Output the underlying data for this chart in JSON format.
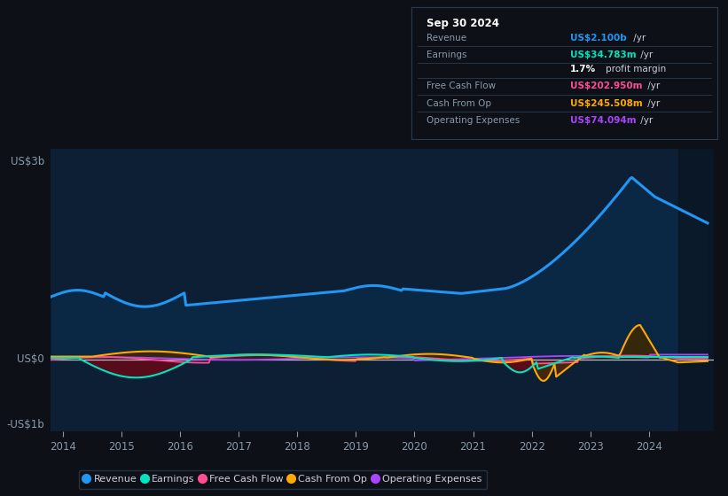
{
  "bg_color": "#0d1117",
  "plot_bg_color": "#0d1f35",
  "grid_color": "#263d5a",
  "ylabel_3b": "US$3b",
  "ylabel_0": "US$0",
  "ylabel_neg1b": "-US$1b",
  "x_ticks": [
    2014,
    2015,
    2016,
    2017,
    2018,
    2019,
    2020,
    2021,
    2022,
    2023,
    2024
  ],
  "ylim_low": -1100000000.0,
  "ylim_high": 3200000000.0,
  "revenue_color": "#2196f3",
  "earnings_color": "#00e5c0",
  "fcf_color": "#ff4d94",
  "cashop_color": "#ffaa00",
  "opex_color": "#aa44ff",
  "revenue_fill": "#0a2a4a",
  "earnings_fill_neg": "#5c0a1a",
  "cashop_fill_neg": "#5c2a00",
  "cashop_fill_pos": "#3a2800",
  "legend_items": [
    {
      "label": "Revenue",
      "color": "#2196f3"
    },
    {
      "label": "Earnings",
      "color": "#00e5c0"
    },
    {
      "label": "Free Cash Flow",
      "color": "#ff4d94"
    },
    {
      "label": "Cash From Op",
      "color": "#ffaa00"
    },
    {
      "label": "Operating Expenses",
      "color": "#aa44ff"
    }
  ],
  "info_box_title": "Sep 30 2024",
  "info_rows": [
    {
      "label": "Revenue",
      "value": "US$2.100b",
      "suffix": " /yr",
      "value_color": "#2196f3"
    },
    {
      "label": "Earnings",
      "value": "US$34.783m",
      "suffix": " /yr",
      "value_color": "#00e5c0"
    },
    {
      "label": "",
      "value": "1.7%",
      "suffix": " profit margin",
      "value_color": "#ffffff",
      "bold": true
    },
    {
      "label": "Free Cash Flow",
      "value": "US$202.950m",
      "suffix": " /yr",
      "value_color": "#ff4d94"
    },
    {
      "label": "Cash From Op",
      "value": "US$245.508m",
      "suffix": " /yr",
      "value_color": "#ffaa00"
    },
    {
      "label": "Operating Expenses",
      "value": "US$74.094m",
      "suffix": " /yr",
      "value_color": "#aa44ff"
    }
  ]
}
